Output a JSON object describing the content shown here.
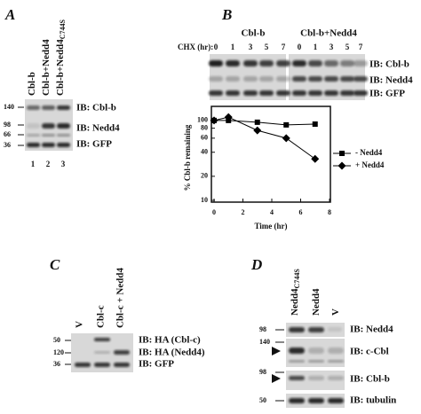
{
  "panel_a": {
    "label": "A",
    "lanes": [
      {
        "text": "Cbl-b"
      },
      {
        "text": "Cbl-b+Nedd4"
      },
      {
        "text": "Cbl-b+Nedd4",
        "sub": "C744S"
      }
    ],
    "markers": [
      "140",
      "98",
      "66",
      "36"
    ],
    "blots": [
      "IB: Cbl-b",
      "IB: Nedd4",
      "IB: GFP"
    ],
    "lane_numbers": [
      "1",
      "2",
      "3"
    ]
  },
  "panel_b": {
    "label": "B",
    "groups": [
      "Cbl-b",
      "Cbl-b+Nedd4"
    ],
    "chx_label": "CHX (hr):",
    "times": [
      "0",
      "1",
      "3",
      "5",
      "7",
      "0",
      "1",
      "3",
      "5",
      "7"
    ],
    "blots": [
      "IB: Cbl-b",
      "IB: Nedd4",
      "IB: GFP"
    ]
  },
  "chart_data": {
    "type": "line",
    "x_label": "Time (hr)",
    "y_label": "% Cbl-b remaining",
    "x": [
      0,
      1,
      3,
      5,
      7
    ],
    "series": [
      {
        "name": "- Nedd4",
        "color": "#000000",
        "marker": "square",
        "values": [
          100,
          100,
          95,
          88,
          90
        ]
      },
      {
        "name": "+ Nedd4",
        "color": "#000000",
        "marker": "diamond",
        "values": [
          100,
          110,
          75,
          60,
          33
        ]
      }
    ],
    "xlim": [
      0,
      8
    ],
    "xticks": [
      0,
      2,
      4,
      6,
      8
    ],
    "ylim": [
      10,
      150
    ],
    "yticks": [
      10,
      20,
      40,
      60,
      80,
      100
    ],
    "log_y": true,
    "legend": "right"
  },
  "panel_c": {
    "label": "C",
    "lanes": [
      "V",
      "Cbl-c",
      "Cbl-c + Nedd4"
    ],
    "markers": [
      "50",
      "120",
      "36"
    ],
    "blots": [
      "IB: HA (Cbl-c)",
      "IB: HA (Nedd4)",
      "IB: GFP"
    ]
  },
  "panel_d": {
    "label": "D",
    "lanes": [
      {
        "text": "Nedd4",
        "sub": "C744S"
      },
      {
        "text": "Nedd4"
      },
      {
        "text": "V"
      }
    ],
    "markers": [
      "98",
      "140",
      "98",
      "50"
    ],
    "blots": [
      "IB: Nedd4",
      "IB: c-Cbl",
      "IB: Cbl-b",
      "IB: tubulin"
    ]
  }
}
